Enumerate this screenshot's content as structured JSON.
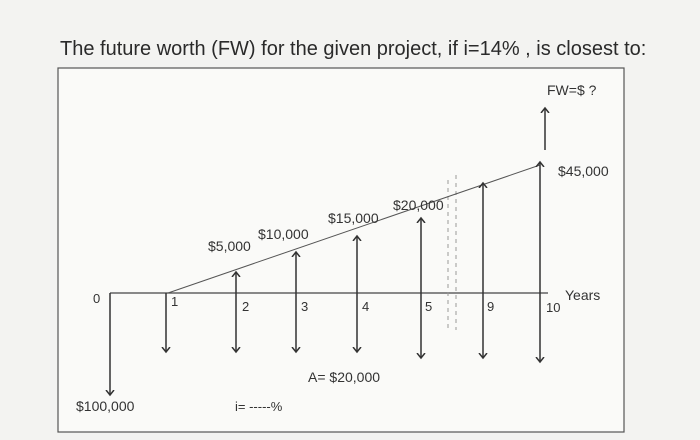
{
  "question": "The future worth (FW) for the given project, if i=14% , is closest to:",
  "diagram": {
    "fw_label": "FW=$ ?",
    "gradient_labels": [
      "$5,000",
      "$10,000",
      "$15,000",
      "$20,000",
      "$45,000"
    ],
    "initial_cost": "$100,000",
    "annuity_label": "A= $20,000",
    "interest_label": "i= -----%",
    "axis_label": "Years",
    "periods": [
      "0",
      "1",
      "2",
      "3",
      "4",
      "5",
      "9",
      "10"
    ]
  }
}
